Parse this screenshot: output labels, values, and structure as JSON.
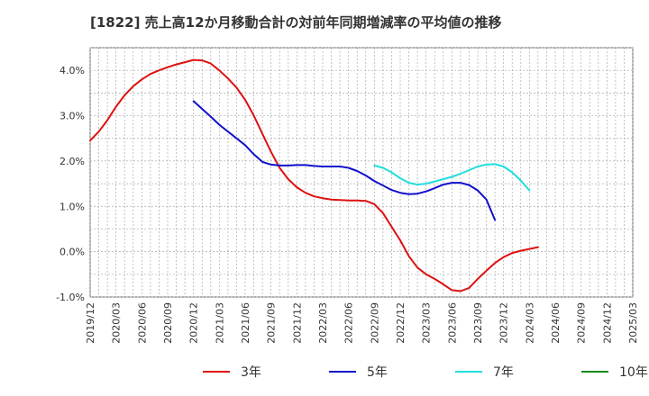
{
  "chart_data": {
    "type": "line",
    "title": "[1822]  売上高12か月移動合計の対前年同期増減率の平均値の推移",
    "xlabel": "",
    "ylabel": "",
    "ylim": [
      -1.0,
      4.5
    ],
    "y_ticks": [
      -1.0,
      0.0,
      1.0,
      2.0,
      3.0,
      4.0
    ],
    "y_tick_labels": [
      "-1.0%",
      "0.0%",
      "1.0%",
      "2.0%",
      "3.0%",
      "4.0%"
    ],
    "x_tick_labels": [
      "2019/12",
      "2020/03",
      "2020/06",
      "2020/09",
      "2020/12",
      "2021/03",
      "2021/06",
      "2021/09",
      "2021/12",
      "2022/03",
      "2022/06",
      "2022/09",
      "2022/12",
      "2023/03",
      "2023/06",
      "2023/09",
      "2023/12",
      "2024/03",
      "2024/06",
      "2024/09",
      "2024/12",
      "2025/03"
    ],
    "grid": true,
    "legend_position": "bottom",
    "series": [
      {
        "name": "3年",
        "color": "#dd1111",
        "start_index": 0,
        "values": [
          2.45,
          2.65,
          2.9,
          3.2,
          3.45,
          3.65,
          3.8,
          3.92,
          4.0,
          4.07,
          4.13,
          4.18,
          4.23,
          4.22,
          4.15,
          4.0,
          3.82,
          3.62,
          3.35,
          3.0,
          2.6,
          2.2,
          1.85,
          1.6,
          1.42,
          1.3,
          1.22,
          1.18,
          1.15,
          1.14,
          1.13,
          1.13,
          1.12,
          1.05,
          0.85,
          0.55,
          0.25,
          -0.1,
          -0.35,
          -0.5,
          -0.6,
          -0.72,
          -0.85,
          -0.87,
          -0.8,
          -0.6,
          -0.42,
          -0.25,
          -0.12,
          -0.03,
          0.02,
          0.06,
          0.1
        ]
      },
      {
        "name": "5年",
        "color": "#1111cc",
        "start_index": 12,
        "values": [
          3.32,
          3.15,
          2.98,
          2.8,
          2.65,
          2.5,
          2.35,
          2.15,
          1.98,
          1.92,
          1.9,
          1.9,
          1.91,
          1.91,
          1.89,
          1.88,
          1.88,
          1.88,
          1.85,
          1.78,
          1.68,
          1.56,
          1.46,
          1.36,
          1.3,
          1.27,
          1.28,
          1.33,
          1.4,
          1.48,
          1.52,
          1.52,
          1.47,
          1.35,
          1.15,
          0.7
        ]
      },
      {
        "name": "7年",
        "color": "#22dddd",
        "start_index": 33,
        "values": [
          1.9,
          1.85,
          1.75,
          1.62,
          1.52,
          1.48,
          1.5,
          1.55,
          1.6,
          1.65,
          1.72,
          1.8,
          1.88,
          1.92,
          1.93,
          1.88,
          1.75,
          1.57,
          1.35
        ]
      },
      {
        "name": "10年",
        "color": "#118811",
        "start_index": 0,
        "values": []
      }
    ]
  }
}
